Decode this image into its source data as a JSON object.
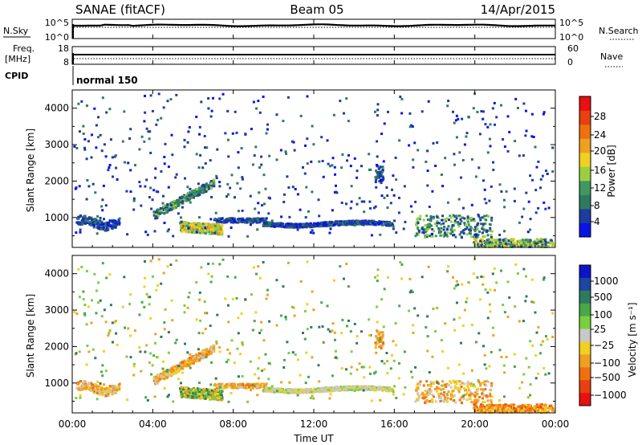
{
  "header": {
    "station": "SANAE (fitACF)",
    "beam": "Beam 05",
    "date": "14/Apr/2015"
  },
  "sky_panel": {
    "left_label": "N.Sky",
    "right_label": "N.Search",
    "left_ticks": [
      "10^5",
      "10^0"
    ],
    "right_ticks": [
      "10^5",
      "10^0"
    ]
  },
  "freq_panel": {
    "left_label_line1": "Freq.",
    "left_label_line2": "[MHz]",
    "right_label": "Nave",
    "left_ticks": [
      "18",
      "8"
    ],
    "right_ticks": [
      "60",
      "0"
    ]
  },
  "cpid_panel": {
    "label": "CPID",
    "mode": "normal 150"
  },
  "power_panel": {
    "ylabel": "Slant Range [km]",
    "yticks": [
      "4000",
      "3000",
      "2000",
      "1000"
    ],
    "colorbar_label": "Power [dB]",
    "colorbar_ticks": [
      "28",
      "24",
      "20",
      "16",
      "12",
      "8",
      "4"
    ],
    "colors": [
      "#0a14e6",
      "#1e3ca0",
      "#2e7a60",
      "#3f9860",
      "#9ad040",
      "#f0d020",
      "#f0a020",
      "#f07010",
      "#e84010",
      "#e81010"
    ]
  },
  "velocity_panel": {
    "ylabel": "Slant Range [km]",
    "yticks": [
      "4000",
      "3000",
      "2000",
      "1000"
    ],
    "colorbar_label": "Velocity [m s⁻¹]",
    "colorbar_ticks": [
      "1000",
      "500",
      "100",
      "25",
      "−25",
      "−100",
      "−500",
      "−1000"
    ],
    "colors": [
      "#0a14c8",
      "#1e46a0",
      "#2e7a60",
      "#48a848",
      "#78d040",
      "#c8c8c8",
      "#f0d020",
      "#f0a020",
      "#f07010",
      "#e84010",
      "#e81010"
    ]
  },
  "time_axis": {
    "ticks": [
      "00:00",
      "04:00",
      "08:00",
      "12:00",
      "16:00",
      "20:00",
      "00:00"
    ],
    "label": "Time UT"
  },
  "chart_data": {
    "type": "heatmap",
    "x_range_hours": [
      0,
      24
    ],
    "y_range_km": [
      180,
      4500
    ],
    "title": "SANAE (fitACF)",
    "subtitle": "Beam 05",
    "date": "14/Apr/2015",
    "xlabel": "Time UT",
    "ylabel": "Slant Range [km]",
    "panels": [
      "N.Sky / N.Search",
      "Freq. / Nave",
      "CPID",
      "Power [dB]",
      "Velocity"
    ],
    "power_scale_db": [
      0,
      32
    ],
    "velocity_scale": [
      -1000,
      1000
    ],
    "echo_regions": [
      {
        "t0": 0.1,
        "t1": 2.3,
        "r0": 650,
        "r1": 1100
      },
      {
        "t0": 4.0,
        "t1": 7.2,
        "r0": 900,
        "r1": 2000
      },
      {
        "t0": 5.2,
        "t1": 7.6,
        "r0": 500,
        "r1": 1000
      },
      {
        "t0": 7.0,
        "t1": 9.6,
        "r0": 800,
        "r1": 1100
      },
      {
        "t0": 9.3,
        "t1": 15.9,
        "r0": 700,
        "r1": 1000
      },
      {
        "t0": 15.0,
        "t1": 15.4,
        "r0": 1800,
        "r1": 2500
      },
      {
        "t0": 17.0,
        "t1": 20.8,
        "r0": 350,
        "r1": 1100
      },
      {
        "t0": 19.8,
        "t1": 24.0,
        "r0": 180,
        "r1": 600
      }
    ]
  }
}
